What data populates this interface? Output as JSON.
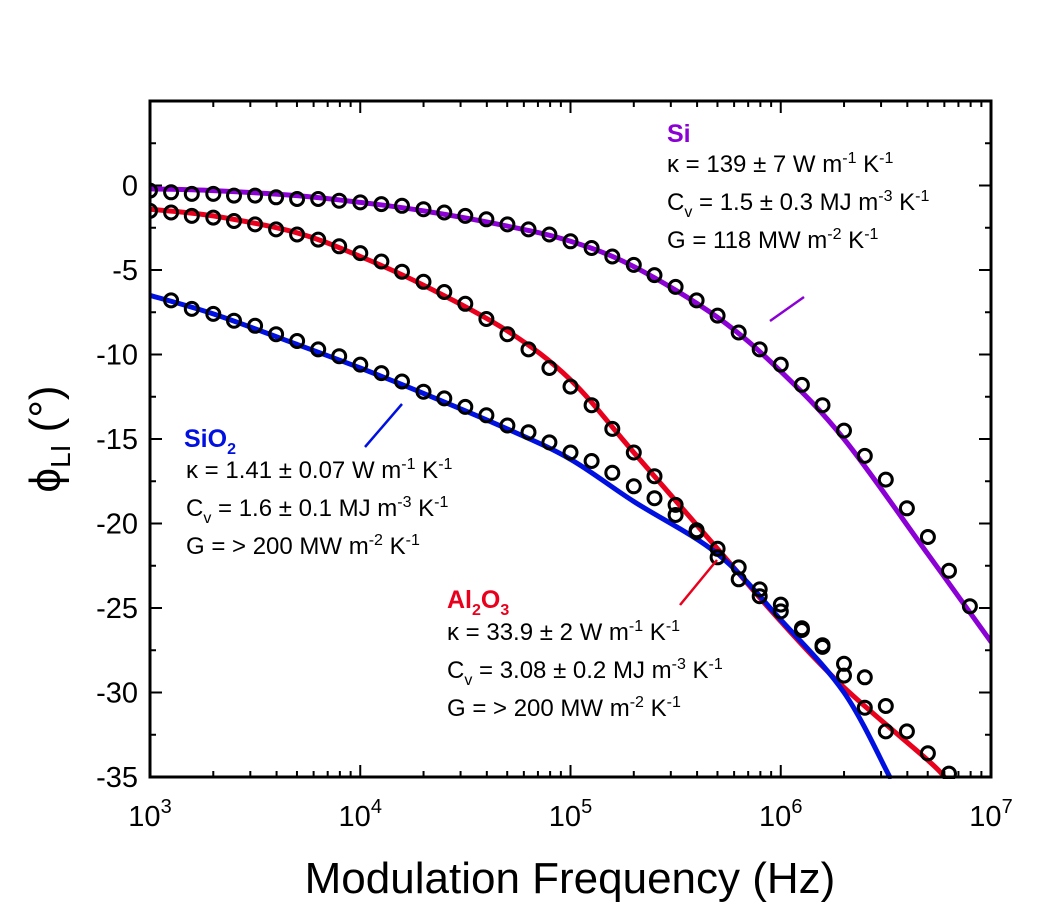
{
  "chart_data": {
    "type": "scatter",
    "title": "",
    "xlabel": "Modulation Frequency (Hz)",
    "ylabel": {
      "main": "ϕ",
      "sub": "LI",
      "unit": " (°)"
    },
    "xscale": "log",
    "xlim": [
      1000,
      10000000
    ],
    "ylim": [
      -35,
      5
    ],
    "x_ticks": [
      {
        "value": 1000,
        "base": "10",
        "exp": "3"
      },
      {
        "value": 10000,
        "base": "10",
        "exp": "4"
      },
      {
        "value": 100000,
        "base": "10",
        "exp": "5"
      },
      {
        "value": 1000000,
        "base": "10",
        "exp": "6"
      },
      {
        "value": 10000000,
        "base": "10",
        "exp": "7"
      }
    ],
    "y_ticks": [
      {
        "value": 0,
        "label": "0"
      },
      {
        "value": -5,
        "label": "-5"
      },
      {
        "value": -10,
        "label": "-10"
      },
      {
        "value": -15,
        "label": "-15"
      },
      {
        "value": -20,
        "label": "-20"
      },
      {
        "value": -25,
        "label": "-25"
      },
      {
        "value": -30,
        "label": "-30"
      },
      {
        "value": -35,
        "label": "-35"
      }
    ],
    "series": [
      {
        "name": "Si",
        "color": "#8B00D4",
        "fit_curve": {
          "x": [
            1000,
            2000,
            5000,
            10000,
            20000,
            50000,
            100000,
            200000,
            500000,
            1000000,
            2000000,
            5000000,
            10000000
          ],
          "y": [
            -0.2,
            -0.3,
            -0.6,
            -1.0,
            -1.5,
            -2.4,
            -3.3,
            -4.8,
            -7.8,
            -11.0,
            -15.0,
            -21.8,
            -27.0
          ]
        },
        "points": {
          "x": [
            1000,
            1260,
            1580,
            2000,
            2510,
            3160,
            3980,
            5010,
            6310,
            7940,
            10000,
            12600,
            15800,
            20000,
            25100,
            31600,
            39800,
            50100,
            63100,
            79400,
            100000,
            126000,
            158000,
            200000,
            251000,
            316000,
            398000,
            501000,
            631000,
            794000,
            1000000,
            1260000,
            1580000,
            2000000,
            2510000,
            3160000,
            3980000,
            5010000,
            6310000,
            7940000
          ],
          "y": [
            -0.3,
            -0.4,
            -0.5,
            -0.5,
            -0.6,
            -0.6,
            -0.7,
            -0.8,
            -0.8,
            -0.9,
            -1.0,
            -1.1,
            -1.2,
            -1.4,
            -1.6,
            -1.8,
            -2.0,
            -2.3,
            -2.6,
            -2.9,
            -3.3,
            -3.7,
            -4.2,
            -4.7,
            -5.3,
            -6.0,
            -6.8,
            -7.7,
            -8.7,
            -9.7,
            -10.6,
            -11.8,
            -13.0,
            -14.5,
            -16.0,
            -17.4,
            -19.1,
            -20.8,
            -22.8,
            -24.9
          ]
        },
        "annotation": {
          "lines": [
            {
              "parts": [
                {
                  "t": "κ = 139 ± 7 W m"
                },
                {
                  "sup": "-1"
                },
                {
                  "t": " K"
                },
                {
                  "sup": "-1"
                }
              ]
            },
            {
              "parts": [
                {
                  "t": "C"
                },
                {
                  "sub": "v"
                },
                {
                  "t": " = 1.5 ± 0.3 MJ m"
                },
                {
                  "sup": "-3"
                },
                {
                  "t": " K"
                },
                {
                  "sup": "-1"
                }
              ]
            },
            {
              "parts": [
                {
                  "t": "G = 118 MW m"
                },
                {
                  "sup": "-2"
                },
                {
                  "t": " K"
                },
                {
                  "sup": "-1"
                }
              ]
            }
          ]
        }
      },
      {
        "name": "Al2O3",
        "color": "#E8001C",
        "fit_curve": {
          "x": [
            1000,
            2000,
            5000,
            10000,
            20000,
            50000,
            100000,
            200000,
            500000,
            1000000,
            2000000,
            5000000,
            6000000
          ],
          "y": [
            -1.4,
            -1.8,
            -2.8,
            -4.2,
            -5.9,
            -8.6,
            -11.5,
            -15.8,
            -21.5,
            -25.8,
            -29.7,
            -34.0,
            -35.0
          ]
        },
        "points": {
          "x": [
            1000,
            1260,
            1580,
            2000,
            2510,
            3160,
            3980,
            5010,
            6310,
            7940,
            10000,
            12600,
            15800,
            20000,
            25100,
            31600,
            39800,
            50100,
            63100,
            79400,
            100000,
            126000,
            158000,
            200000,
            251000,
            316000,
            398000,
            501000,
            631000,
            794000,
            1000000,
            1260000,
            1580000,
            2000000,
            2510000,
            3160000,
            3980000,
            5010000,
            6310000
          ],
          "y": [
            -1.5,
            -1.6,
            -1.8,
            -1.9,
            -2.1,
            -2.3,
            -2.6,
            -2.9,
            -3.2,
            -3.6,
            -4.0,
            -4.5,
            -5.1,
            -5.7,
            -6.3,
            -7.0,
            -7.9,
            -8.8,
            -9.7,
            -10.8,
            -11.9,
            -13.0,
            -14.4,
            -15.8,
            -17.2,
            -18.9,
            -20.5,
            -22.0,
            -23.3,
            -24.3,
            -25.2,
            -26.3,
            -27.2,
            -28.3,
            -29.1,
            -30.8,
            -32.3,
            -33.6,
            -34.8
          ]
        },
        "annotation": {
          "lines": [
            {
              "parts": [
                {
                  "t": "κ = 33.9 ± 2 W m"
                },
                {
                  "sup": "-1"
                },
                {
                  "t": " K"
                },
                {
                  "sup": "-1"
                }
              ]
            },
            {
              "parts": [
                {
                  "t": "C"
                },
                {
                  "sub": "v"
                },
                {
                  "t": " = 3.08 ± 0.2 MJ m"
                },
                {
                  "sup": "-3"
                },
                {
                  "t": " K"
                },
                {
                  "sup": "-1"
                }
              ]
            },
            {
              "parts": [
                {
                  "t": "G = > 200 MW m"
                },
                {
                  "sup": "-2"
                },
                {
                  "t": " K"
                },
                {
                  "sup": "-1"
                }
              ]
            }
          ]
        }
      },
      {
        "name": "SiO2",
        "color": "#0010E0",
        "fit_curve": {
          "x": [
            1000,
            2000,
            5000,
            10000,
            20000,
            50000,
            100000,
            200000,
            500000,
            1000000,
            2000000,
            3300000
          ],
          "y": [
            -6.5,
            -7.6,
            -9.4,
            -10.8,
            -12.3,
            -14.4,
            -16.2,
            -18.7,
            -21.8,
            -25.7,
            -30.0,
            -35.0
          ]
        },
        "points": {
          "x": [
            1260,
            1580,
            2000,
            2510,
            3160,
            3980,
            5010,
            6310,
            7940,
            10000,
            12600,
            15800,
            20000,
            25100,
            31600,
            39800,
            50100,
            63100,
            79400,
            100000,
            126000,
            158000,
            200000,
            251000,
            316000,
            398000,
            501000,
            631000,
            794000,
            1000000,
            1260000,
            1580000,
            2000000,
            2510000,
            3160000
          ],
          "y": [
            -6.8,
            -7.3,
            -7.6,
            -8.0,
            -8.3,
            -8.8,
            -9.2,
            -9.7,
            -10.1,
            -10.6,
            -11.1,
            -11.6,
            -12.2,
            -12.6,
            -13.1,
            -13.6,
            -14.2,
            -14.6,
            -15.2,
            -15.8,
            -16.3,
            -17.0,
            -17.8,
            -18.5,
            -19.5,
            -20.4,
            -21.5,
            -22.6,
            -23.9,
            -24.8,
            -26.2,
            -27.3,
            -29.0,
            -30.9,
            -32.3
          ]
        },
        "annotation": {
          "lines": [
            {
              "parts": [
                {
                  "t": "κ = 1.41 ± 0.07 W m"
                },
                {
                  "sup": "-1"
                },
                {
                  "t": " K"
                },
                {
                  "sup": "-1"
                }
              ]
            },
            {
              "parts": [
                {
                  "t": "C"
                },
                {
                  "sub": "v"
                },
                {
                  "t": " = 1.6 ± 0.1 MJ m"
                },
                {
                  "sup": "-3"
                },
                {
                  "t": " K"
                },
                {
                  "sup": "-1"
                }
              ]
            },
            {
              "parts": [
                {
                  "t": "G = > 200 MW m"
                },
                {
                  "sup": "-2"
                },
                {
                  "t": " K"
                },
                {
                  "sup": "-1"
                }
              ]
            }
          ]
        }
      }
    ],
    "series_titles": [
      {
        "series": "Si",
        "parts": [
          {
            "t": "Si"
          }
        ]
      },
      {
        "series": "Al2O3",
        "parts": [
          {
            "t": "Al"
          },
          {
            "sub": "2"
          },
          {
            "t": "O"
          },
          {
            "sub": "3"
          }
        ]
      },
      {
        "series": "SiO2",
        "parts": [
          {
            "t": "SiO"
          },
          {
            "sub": "2"
          }
        ]
      }
    ]
  }
}
